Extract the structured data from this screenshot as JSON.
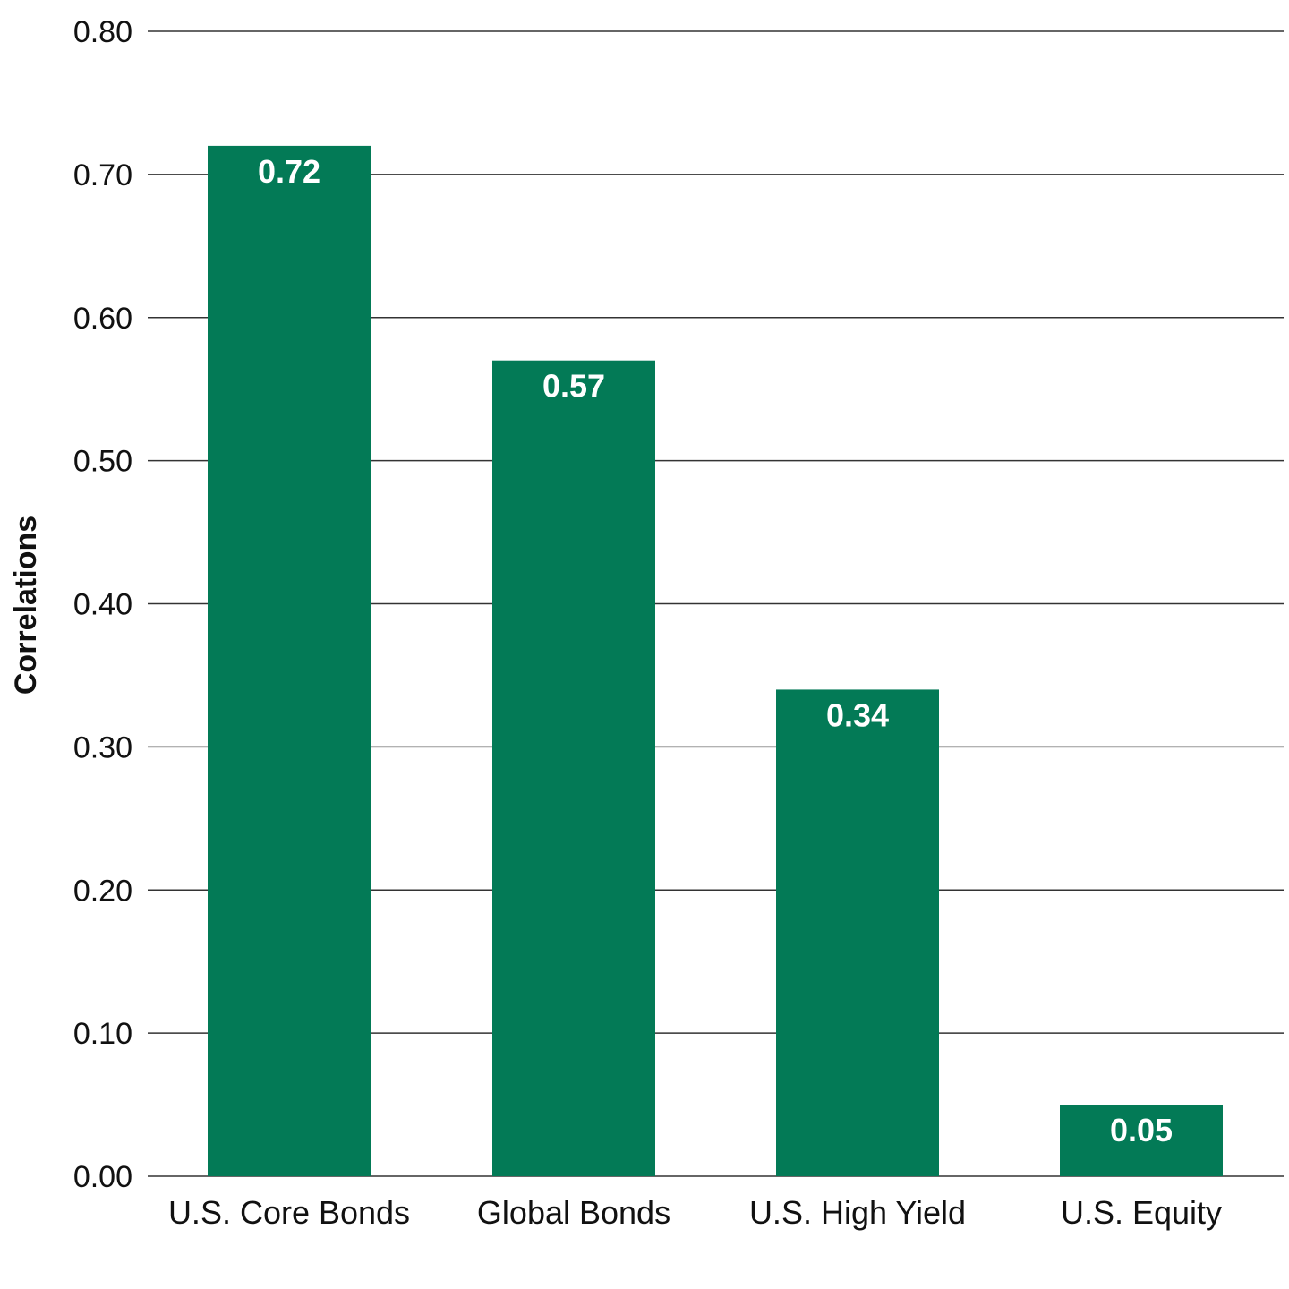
{
  "chart_data": {
    "type": "bar",
    "title": "",
    "xlabel": "",
    "ylabel": "Correlations",
    "categories": [
      "U.S. Core Bonds",
      "Global Bonds",
      "U.S. High Yield",
      "U.S. Equity"
    ],
    "values": [
      0.72,
      0.57,
      0.34,
      0.05
    ],
    "value_labels": [
      "0.72",
      "0.57",
      "0.34",
      "0.05"
    ],
    "ylim": [
      0,
      0.8
    ],
    "y_ticks": [
      "0.00",
      "0.10",
      "0.20",
      "0.30",
      "0.40",
      "0.50",
      "0.60",
      "0.70",
      "0.80"
    ],
    "grid": true,
    "legend": "none",
    "bar_color": "#037a56"
  }
}
